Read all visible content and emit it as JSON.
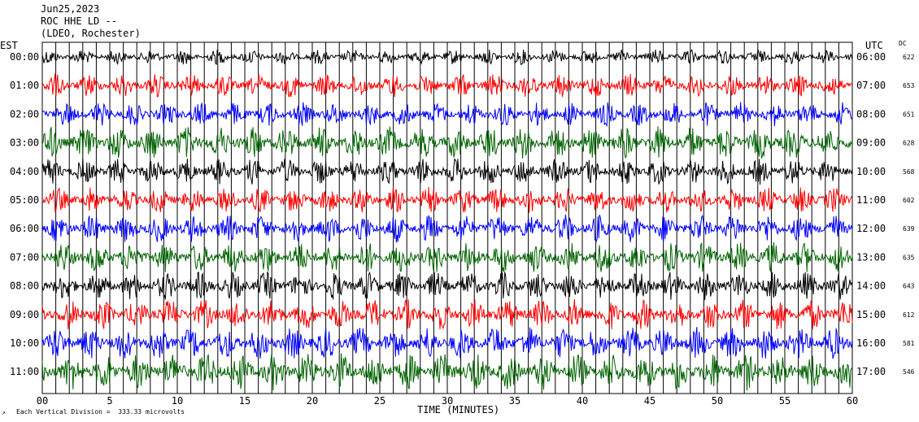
{
  "header": {
    "line1": "Jun25,2023",
    "line2": "ROC HHE LD --",
    "line3": "(LDEO, Rochester)"
  },
  "labels": {
    "left_timezone": "EST",
    "right_timezone": "UTC",
    "dc_header": "DC",
    "xlabel": "TIME (MINUTES)",
    "footer_glyph": "↗",
    "footer": "Each Vertical Division =  333.33 microvolts"
  },
  "colors": {
    "black": "#000000",
    "red": "#ff0000",
    "blue": "#0000ff",
    "green": "#006400",
    "grid": "#000000"
  },
  "chart_data": {
    "type": "line",
    "title": "ROC HHE LD --",
    "xlabel": "TIME (MINUTES)",
    "xlim": [
      0,
      60
    ],
    "x_ticks": [
      "00",
      "5",
      "10",
      "15",
      "20",
      "25",
      "30",
      "35",
      "40",
      "45",
      "50",
      "55",
      "60"
    ],
    "rows": [
      {
        "est": "00:00",
        "utc": "06:00",
        "dc": "622",
        "color": "black",
        "amplitude": 0.35
      },
      {
        "est": "01:00",
        "utc": "07:00",
        "dc": "653",
        "color": "red",
        "amplitude": 0.55
      },
      {
        "est": "02:00",
        "utc": "08:00",
        "dc": "651",
        "color": "blue",
        "amplitude": 0.55
      },
      {
        "est": "03:00",
        "utc": "09:00",
        "dc": "628",
        "color": "green",
        "amplitude": 0.75
      },
      {
        "est": "04:00",
        "utc": "10:00",
        "dc": "568",
        "color": "black",
        "amplitude": 0.6
      },
      {
        "est": "05:00",
        "utc": "11:00",
        "dc": "602",
        "color": "red",
        "amplitude": 0.6
      },
      {
        "est": "06:00",
        "utc": "12:00",
        "dc": "639",
        "color": "blue",
        "amplitude": 0.65
      },
      {
        "est": "07:00",
        "utc": "13:00",
        "dc": "635",
        "color": "green",
        "amplitude": 0.7
      },
      {
        "est": "08:00",
        "utc": "14:00",
        "dc": "643",
        "color": "black",
        "amplitude": 0.65
      },
      {
        "est": "09:00",
        "utc": "15:00",
        "dc": "612",
        "color": "red",
        "amplitude": 0.7
      },
      {
        "est": "10:00",
        "utc": "16:00",
        "dc": "581",
        "color": "blue",
        "amplitude": 0.75
      },
      {
        "est": "11:00",
        "utc": "17:00",
        "dc": "546",
        "color": "green",
        "amplitude": 0.85
      }
    ]
  }
}
